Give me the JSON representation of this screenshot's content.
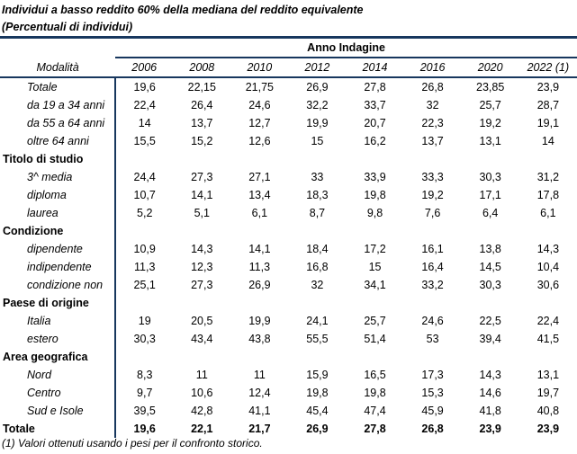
{
  "title": "Individui a basso reddito 60% della mediana del reddito equivalente",
  "subtitle": "(Percentuali di individui)",
  "column_group": "Anno Indagine",
  "row_header": "Modalità",
  "years": [
    "2006",
    "2008",
    "2010",
    "2012",
    "2014",
    "2016",
    "2020",
    "2022 (1)"
  ],
  "rows": [
    {
      "type": "sub",
      "label": "Totale",
      "values": [
        "19,6",
        "22,15",
        "21,75",
        "26,9",
        "27,8",
        "26,8",
        "23,85",
        "23,9"
      ]
    },
    {
      "type": "sub",
      "label": "da 19 a 34 anni",
      "values": [
        "22,4",
        "26,4",
        "24,6",
        "32,2",
        "33,7",
        "32",
        "25,7",
        "28,7"
      ]
    },
    {
      "type": "sub",
      "label": "da 55 a 64 anni",
      "values": [
        "14",
        "13,7",
        "12,7",
        "19,9",
        "20,7",
        "22,3",
        "19,2",
        "19,1"
      ]
    },
    {
      "type": "sub",
      "label": "oltre 64 anni",
      "values": [
        "15,5",
        "15,2",
        "12,6",
        "15",
        "16,2",
        "13,7",
        "13,1",
        "14"
      ]
    },
    {
      "type": "grp",
      "label": "Titolo di studio",
      "values": []
    },
    {
      "type": "sub",
      "label": "3^ media",
      "values": [
        "24,4",
        "27,3",
        "27,1",
        "33",
        "33,9",
        "33,3",
        "30,3",
        "31,2"
      ]
    },
    {
      "type": "sub",
      "label": "diploma",
      "values": [
        "10,7",
        "14,1",
        "13,4",
        "18,3",
        "19,8",
        "19,2",
        "17,1",
        "17,8"
      ]
    },
    {
      "type": "sub",
      "label": "laurea",
      "values": [
        "5,2",
        "5,1",
        "6,1",
        "8,7",
        "9,8",
        "7,6",
        "6,4",
        "6,1"
      ]
    },
    {
      "type": "grp",
      "label": "Condizione",
      "values": []
    },
    {
      "type": "sub",
      "label": "dipendente",
      "values": [
        "10,9",
        "14,3",
        "14,1",
        "18,4",
        "17,2",
        "16,1",
        "13,8",
        "14,3"
      ]
    },
    {
      "type": "sub",
      "label": "indipendente",
      "values": [
        "11,3",
        "12,3",
        "11,3",
        "16,8",
        "15",
        "16,4",
        "14,5",
        "10,4"
      ]
    },
    {
      "type": "sub",
      "label": "condizione non",
      "values": [
        "25,1",
        "27,3",
        "26,9",
        "32",
        "34,1",
        "33,2",
        "30,3",
        "30,6"
      ]
    },
    {
      "type": "grp",
      "label": "Paese di origine",
      "values": []
    },
    {
      "type": "sub",
      "label": "Italia",
      "values": [
        "19",
        "20,5",
        "19,9",
        "24,1",
        "25,7",
        "24,6",
        "22,5",
        "22,4"
      ]
    },
    {
      "type": "sub",
      "label": "estero",
      "values": [
        "30,3",
        "43,4",
        "43,8",
        "55,5",
        "51,4",
        "53",
        "39,4",
        "41,5"
      ]
    },
    {
      "type": "grp",
      "label": "Area geografica",
      "values": []
    },
    {
      "type": "sub",
      "label": "Nord",
      "values": [
        "8,3",
        "11",
        "11",
        "15,9",
        "16,5",
        "17,3",
        "14,3",
        "13,1"
      ]
    },
    {
      "type": "sub",
      "label": "Centro",
      "values": [
        "9,7",
        "10,6",
        "12,4",
        "19,8",
        "19,8",
        "15,3",
        "14,6",
        "19,7"
      ]
    },
    {
      "type": "sub",
      "label": "Sud e Isole",
      "values": [
        "39,5",
        "42,8",
        "41,1",
        "45,4",
        "47,4",
        "45,9",
        "41,8",
        "40,8"
      ]
    },
    {
      "type": "tot",
      "label": "Totale",
      "values": [
        "19,6",
        "22,1",
        "21,7",
        "26,9",
        "27,8",
        "26,8",
        "23,9",
        "23,9"
      ]
    }
  ],
  "footnote": "(1) Valori ottenuti usando i pesi per il confronto storico."
}
